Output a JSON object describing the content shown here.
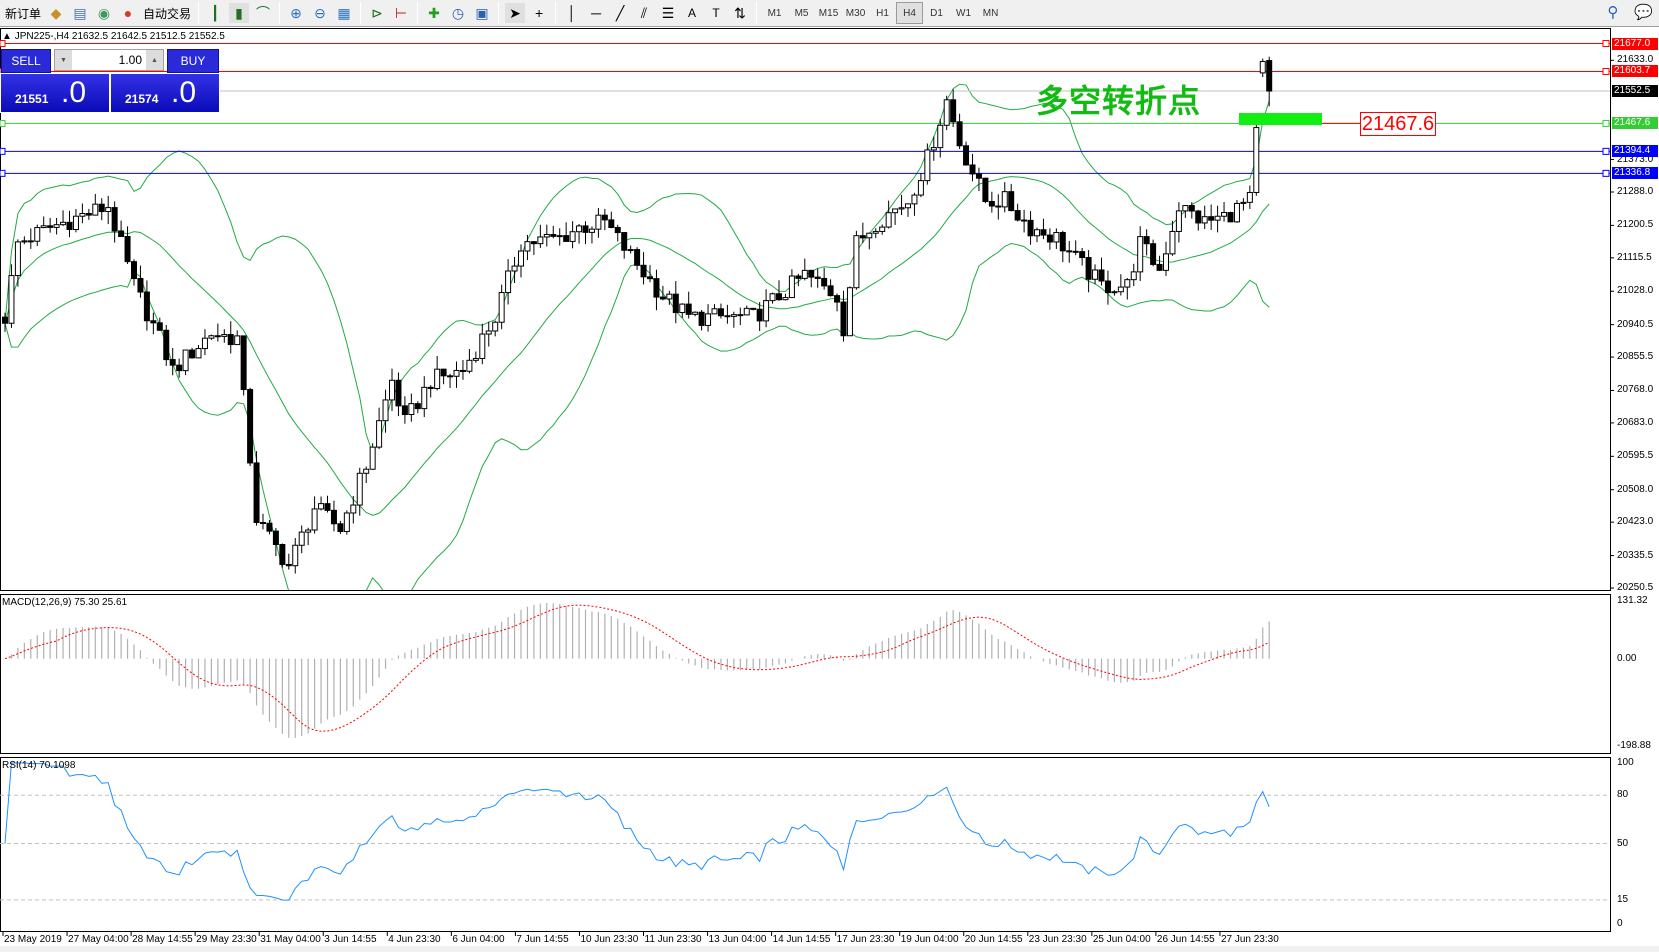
{
  "toolbar": {
    "new_order": "新订单",
    "auto_trading": "自动交易",
    "icons": [
      "market-watch-icon",
      "data-window-icon",
      "navigator-icon",
      "signals-icon",
      "bar-chart-icon",
      "candlestick-icon",
      "line-chart-icon",
      "zoom-in-icon",
      "zoom-out-icon",
      "tile-windows-icon",
      "auto-scroll-icon",
      "chart-shift-icon",
      "indicators-icon",
      "periods-icon",
      "templates-icon",
      "cursor-icon",
      "crosshair-icon",
      "vertical-line-icon",
      "horizontal-line-icon",
      "trendline-icon",
      "fibonacci-icon",
      "fibo-lines-icon",
      "text-icon",
      "text-label-icon",
      "arrows-icon"
    ],
    "timeframes": [
      "M1",
      "M5",
      "M15",
      "M30",
      "H1",
      "H4",
      "D1",
      "W1",
      "MN"
    ],
    "selected_timeframe": "H4"
  },
  "chart": {
    "symbol_line": "JPN225-,H4  21632.5 21642.5 21512.5 21552.5",
    "symbol": "JPN225-",
    "period": "H4",
    "last_bar": {
      "open": 21632.5,
      "high": 21642.5,
      "low": 21512.5,
      "close": 21552.5
    },
    "annotation": "多空转折点",
    "annotation_color": "#11bb11",
    "price_label": "21467.6",
    "price_axis": [
      "21633.0",
      "21373.0",
      "21288.0",
      "21200.5",
      "21115.5",
      "21028.0",
      "20940.5",
      "20855.5",
      "20768.0",
      "20683.0",
      "20595.5",
      "20508.0",
      "20423.0",
      "20335.5",
      "20250.5"
    ],
    "price_range": [
      20250.5,
      21633.0
    ],
    "hlines": [
      {
        "price": 21677.0,
        "label": "21677.0",
        "color": "#ff0000"
      },
      {
        "price": 21603.7,
        "label": "21603.7",
        "color": "#ff0000"
      },
      {
        "price": 21552.5,
        "label": "21552.5",
        "color": "#000000",
        "line": "#c0c0c0"
      },
      {
        "price": 21467.6,
        "label": "21467.6",
        "color": "#33cc33"
      },
      {
        "price": 21394.4,
        "label": "21394.4",
        "color": "#0000ff"
      },
      {
        "price": 21336.8,
        "label": "21336.8",
        "color": "#0000ff"
      }
    ],
    "price_path": [
      [
        0,
        20960
      ],
      [
        2,
        21154
      ],
      [
        7,
        21195
      ],
      [
        16,
        21251
      ],
      [
        20,
        21043
      ],
      [
        24,
        20904
      ],
      [
        26,
        20821
      ],
      [
        32,
        20918
      ],
      [
        36,
        20904
      ],
      [
        39,
        20434
      ],
      [
        40,
        20406
      ],
      [
        44,
        20309
      ],
      [
        48,
        20461
      ],
      [
        52,
        20406
      ],
      [
        56,
        20572
      ],
      [
        60,
        20794
      ],
      [
        62,
        20683
      ],
      [
        66,
        20794
      ],
      [
        71,
        20821
      ],
      [
        76,
        20960
      ],
      [
        80,
        21154
      ],
      [
        86,
        21168
      ],
      [
        89,
        21195
      ],
      [
        93,
        21209
      ],
      [
        98,
        21098
      ],
      [
        102,
        21015
      ],
      [
        106,
        20960
      ],
      [
        111,
        20960
      ],
      [
        116,
        20960
      ],
      [
        120,
        21015
      ],
      [
        124,
        21071
      ],
      [
        129,
        21015
      ],
      [
        130,
        20932
      ],
      [
        132,
        21154
      ],
      [
        135,
        21209
      ],
      [
        140,
        21265
      ],
      [
        143,
        21375
      ],
      [
        146,
        21528
      ],
      [
        148,
        21417
      ],
      [
        152,
        21265
      ],
      [
        155,
        21265
      ],
      [
        159,
        21195
      ],
      [
        163,
        21168
      ],
      [
        166,
        21112
      ],
      [
        170,
        21043
      ],
      [
        174,
        21043
      ],
      [
        176,
        21154
      ],
      [
        179,
        21084
      ],
      [
        182,
        21251
      ],
      [
        186,
        21209
      ],
      [
        189,
        21223
      ],
      [
        193,
        21265
      ],
      [
        195,
        21615
      ],
      [
        196,
        21552.5
      ]
    ],
    "bollinger": {
      "period": 20,
      "deviation": 2,
      "color": "#22aa44"
    }
  },
  "trade_panel": {
    "sell_label": "SELL",
    "buy_label": "BUY",
    "lot": "1.00",
    "sell_price_main": "21551",
    "sell_price_frac": ".0",
    "buy_price_main": "21574",
    "buy_price_frac": ".0"
  },
  "macd": {
    "label": "MACD(12,26,9) 75.30 25.61",
    "axis": [
      "131.32",
      "0.00",
      "-198.88"
    ],
    "range": [
      -198.88,
      131.32
    ],
    "signal_color": "#ff0000"
  },
  "rsi": {
    "label": "RSI(14) 70.1098",
    "axis": [
      "100",
      "80",
      "50",
      "15",
      "0"
    ],
    "levels": [
      80,
      50,
      15
    ],
    "color": "#1e90ff"
  },
  "time_axis": [
    "23 May 2019",
    "27 May 04:00",
    "28 May 14:55",
    "29 May 23:30",
    "31 May 04:00",
    "3 Jun 14:55",
    "4 Jun 23:30",
    "6 Jun 04:00",
    "7 Jun 14:55",
    "10 Jun 23:30",
    "11 Jun 23:30",
    "13 Jun 04:00",
    "14 Jun 14:55",
    "17 Jun 23:30",
    "19 Jun 04:00",
    "20 Jun 14:55",
    "23 Jun 23:30",
    "25 Jun 04:00",
    "26 Jun 14:55",
    "27 Jun 23:30"
  ]
}
